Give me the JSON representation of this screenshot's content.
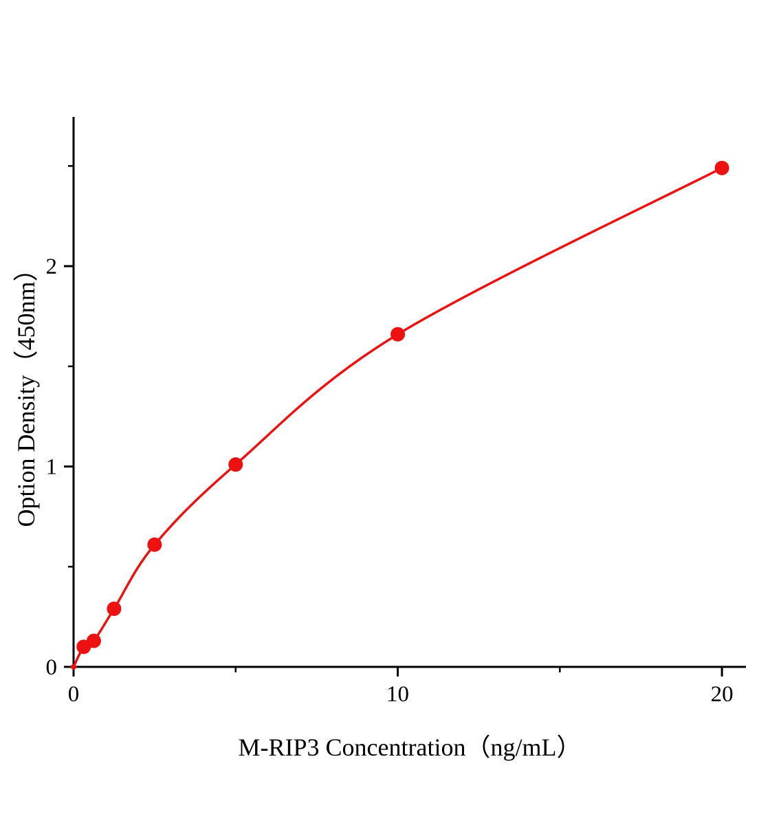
{
  "chart": {
    "xlabel": "M-RIP3 Concentration（ng/mL）",
    "ylabel": "Option Density（450nm）"
  },
  "chart_data": {
    "type": "scatter",
    "title": "",
    "xlabel": "M-RIP3 Concentration（ng/mL）",
    "ylabel": "Option Density（450nm）",
    "x": [
      0,
      0.313,
      0.625,
      1.25,
      2.5,
      5,
      10,
      20
    ],
    "y": [
      0,
      0.1,
      0.13,
      0.29,
      0.61,
      1.01,
      1.66,
      2.49
    ],
    "xlim": [
      0,
      20.74
    ],
    "ylim": [
      0,
      2.745
    ],
    "x_ticks_major": [
      0,
      10,
      20
    ],
    "x_ticks_minor": [
      5,
      15
    ],
    "y_ticks_major": [
      0,
      1,
      2
    ],
    "y_ticks_minor": [
      0.5,
      1.5,
      2.5
    ],
    "grid": false,
    "legend": null,
    "curve_style": "smooth",
    "line_color": "#ee1111",
    "marker_color": "#ee1111",
    "axis_color": "#000000"
  }
}
